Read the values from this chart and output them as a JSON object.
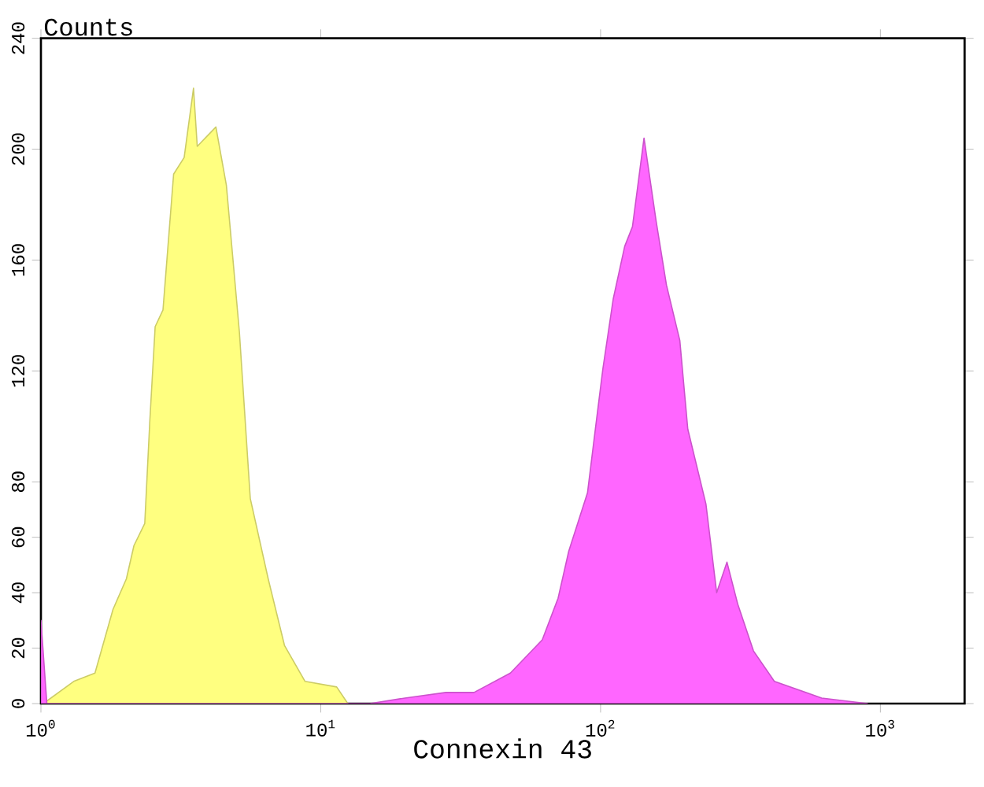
{
  "chart_data": {
    "type": "area",
    "xlabel": "Connexin 43",
    "ylabel": "Counts",
    "log": "x",
    "xlim": [
      1,
      2000
    ],
    "ylim": [
      0,
      240
    ],
    "xticks": [
      {
        "value": 1,
        "label": "10$^{0}$"
      },
      {
        "value": 10,
        "label": "10$^{1}$"
      },
      {
        "value": 100,
        "label": "10$^{2}$"
      },
      {
        "value": 1000,
        "label": "10$^{3}$"
      }
    ],
    "yticks": [
      0,
      20,
      40,
      60,
      80,
      120,
      160,
      200,
      240
    ],
    "series": [
      {
        "color": "#ffff80",
        "x": [
          1.02,
          1.31,
          1.56,
          1.81,
          2.02,
          2.15,
          2.35,
          2.45,
          2.56,
          2.73,
          2.98,
          3.25,
          3.51,
          3.62,
          4.22,
          4.6,
          5.12,
          5.6,
          6.49,
          7.42,
          8.79,
          11.4,
          12.5
        ],
        "values": [
          0,
          8,
          11,
          34,
          45,
          57,
          65,
          102,
          136,
          142,
          191,
          197,
          222,
          201,
          208,
          187,
          134,
          74,
          45,
          21,
          8,
          6,
          0
        ]
      },
      {
        "color": "#ff66ff",
        "x": [
          1.0,
          1.05,
          15,
          20,
          28,
          35.3,
          47.6,
          61.9,
          70.5,
          77,
          89.8,
          95.8,
          102,
          111,
          122,
          130,
          143,
          158,
          172,
          192,
          205,
          238,
          260,
          283,
          309,
          352,
          418,
          617,
          900
        ],
        "values": [
          30,
          0,
          0,
          2,
          4,
          4,
          11,
          23,
          38,
          55,
          76,
          99,
          121,
          146,
          165,
          172,
          204,
          174,
          151,
          131,
          99,
          72,
          40,
          51,
          36,
          19,
          8,
          2,
          0
        ]
      }
    ]
  }
}
